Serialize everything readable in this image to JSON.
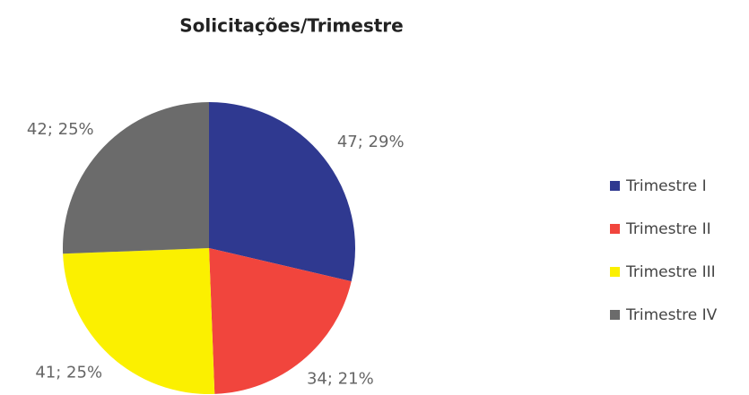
{
  "chart_data": {
    "type": "pie",
    "title": "Solicitações/Trimestre",
    "categories": [
      "Trimestre I",
      "Trimestre II",
      "Trimestre III",
      "Trimestre IV"
    ],
    "values": [
      47,
      34,
      41,
      42
    ],
    "value_labels": [
      "47; 29%",
      "34; 21%",
      "41; 25%",
      "42; 25%"
    ],
    "colors": [
      "#2f3990",
      "#f1453d",
      "#fbf000",
      "#6b6b6b"
    ],
    "legend": "right"
  }
}
